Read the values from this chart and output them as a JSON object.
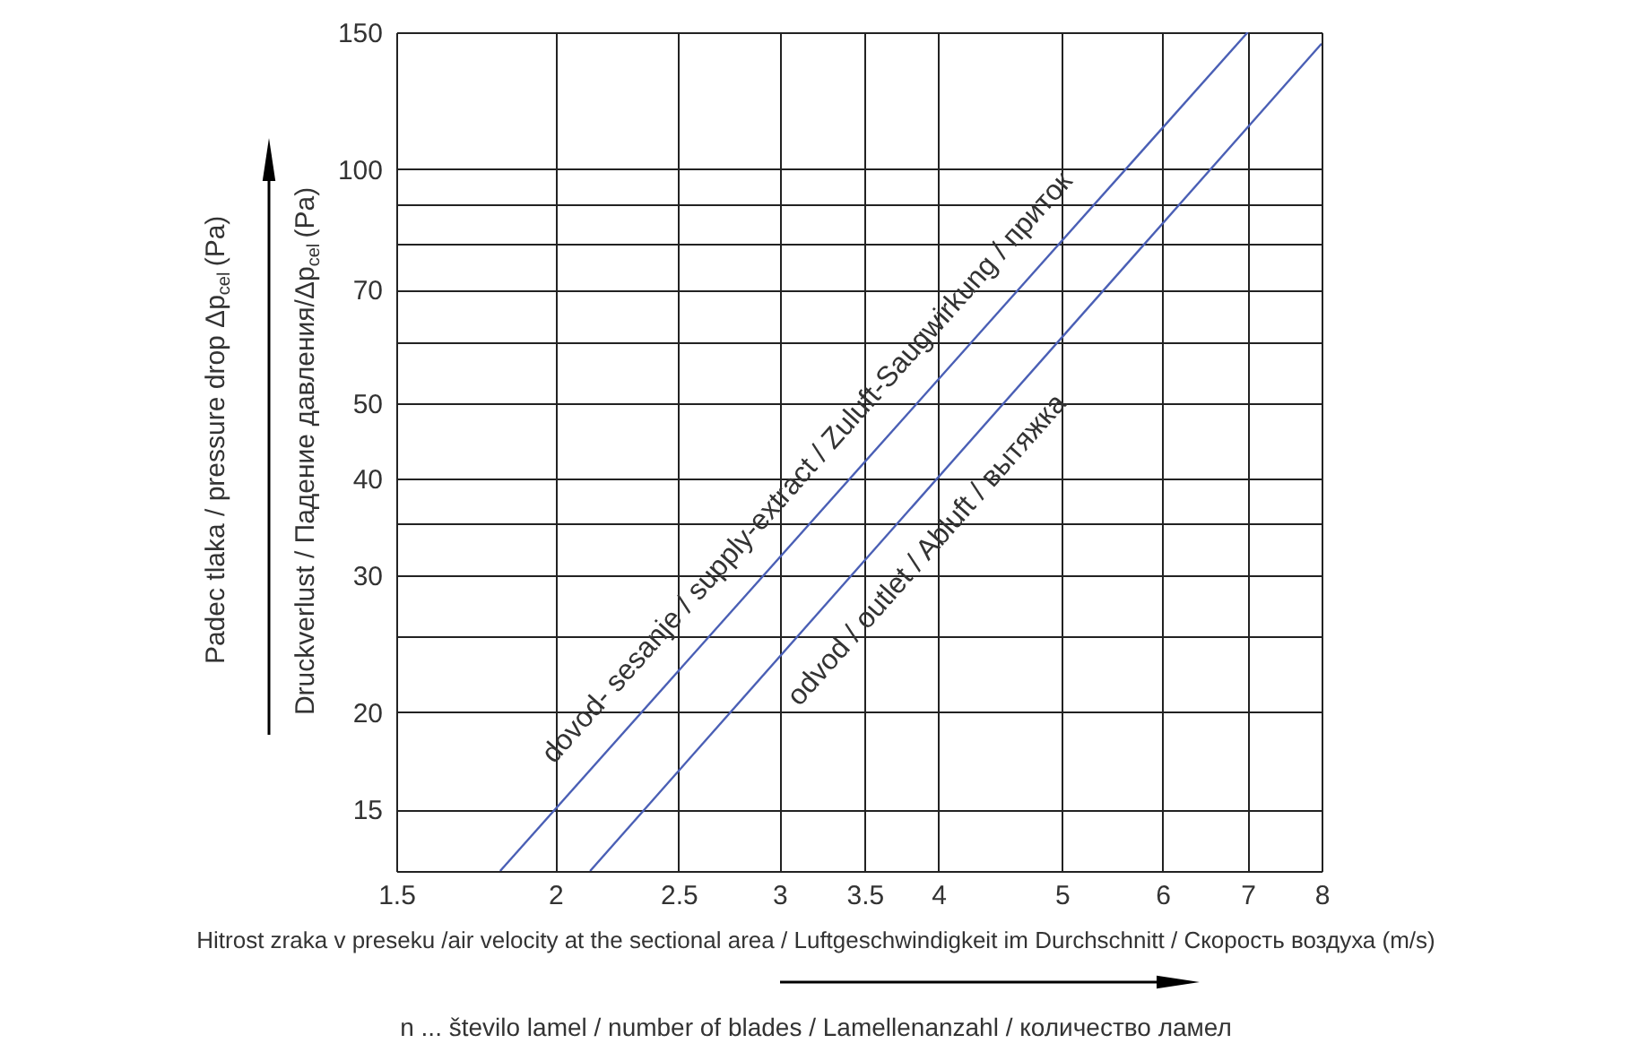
{
  "chart_data": {
    "type": "line",
    "log": "xy",
    "grid": true,
    "marker": "none",
    "line_style": "solid",
    "xlabel": "Hitrost zraka v preseku /air velocity at the sectional area / Luftgeschwindigkeit im Durchschnitt / Скорость воздуха (m/s)",
    "ylabel": "Padec tlaka / pressure drop Δp$_{cel}$ (Pa)\nDruckverlust / Падение давления/Δp$_{cel}$ (Pa)",
    "xlim": [
      1.5,
      8
    ],
    "ylim": [
      12.5,
      150
    ],
    "xticks": [
      1.5,
      2,
      2.5,
      3,
      3.5,
      4,
      5,
      6,
      7,
      8
    ],
    "yticks": [
      {
        "value": 12.5,
        "label": null
      },
      15,
      20,
      {
        "value": 25,
        "label": null
      },
      30,
      {
        "value": 35,
        "label": null
      },
      40,
      50,
      {
        "value": 60,
        "label": null
      },
      70,
      {
        "value": 80,
        "label": null
      },
      {
        "value": 90,
        "label": null
      },
      100,
      150
    ],
    "series": [
      {
        "color": "#4a5fb5",
        "x": [
          1.81,
          7
        ],
        "values": [
          12.5,
          150
        ]
      },
      {
        "color": "#4a5fb5",
        "x": [
          2.13,
          8
        ],
        "values": [
          12.5,
          145
        ]
      }
    ],
    "annotations": [
      "dovod- sesanje / supply-extract / Zuluft-Saugwirkung / приток",
      "odvod / outlet / Abluft / вытяжка",
      "n ... število lamel / number of blades / Lamellenanzahl / количество ламел"
    ]
  }
}
